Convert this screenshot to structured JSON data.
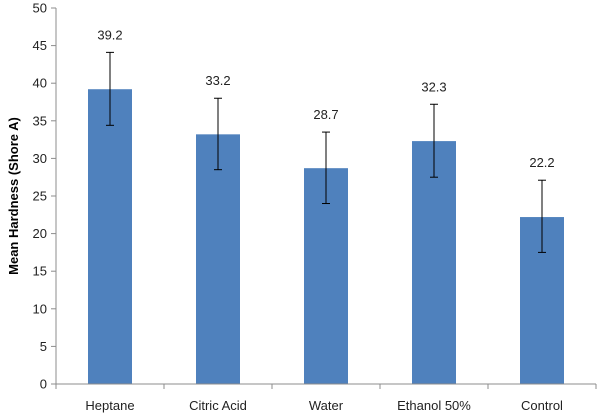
{
  "chart_data": {
    "type": "bar",
    "categories": [
      "Heptane",
      "Citric Acid",
      "Water",
      "Ethanol 50%",
      "Control"
    ],
    "values": [
      39.2,
      33.2,
      28.7,
      32.3,
      22.2
    ],
    "error_low": [
      34.4,
      28.5,
      24.0,
      27.5,
      17.5
    ],
    "error_high": [
      44.1,
      38.0,
      33.5,
      37.2,
      27.1
    ],
    "value_labels": [
      "39.2",
      "33.2",
      "28.7",
      "32.3",
      "22.2"
    ],
    "title": "",
    "xlabel": "",
    "ylabel": "Mean Hardness (Shore A)",
    "ylim": [
      0,
      50
    ],
    "yticks": [
      "0",
      "5",
      "10",
      "15",
      "20",
      "25",
      "30",
      "35",
      "40",
      "45",
      "50"
    ],
    "grid": false,
    "legend": "none",
    "colors": {
      "bar": "#4F81BD",
      "axis": "#8C8C8C",
      "error_bar": "#000000"
    }
  }
}
